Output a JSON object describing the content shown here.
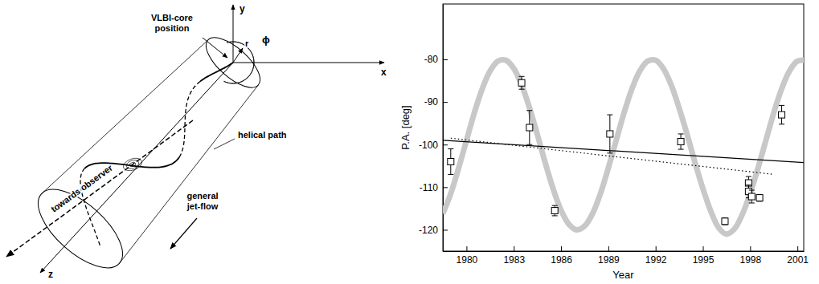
{
  "diagram": {
    "axis_labels": {
      "x": "x",
      "y": "y",
      "z": "z"
    },
    "labels": {
      "core": "VLBI-core position",
      "r": "r",
      "phi": "ϕ",
      "helix": "helical path",
      "observer": "towards observer",
      "flow": "general jet-flow"
    }
  },
  "chart_data": {
    "type": "scatter",
    "x_label": "Year",
    "y_label": "P.A. [deg]",
    "xlim": [
      1978.5,
      2001.4
    ],
    "ylim": [
      -125,
      -67
    ],
    "xticks": [
      1980,
      1983,
      1986,
      1989,
      1992,
      1995,
      1998,
      2001
    ],
    "yticks": [
      -120,
      -110,
      -100,
      -90,
      -80
    ],
    "grid": false,
    "series": [
      {
        "type": "band",
        "color": "#c8c8c8",
        "line_style": "solid",
        "x": [
          1978.5,
          1979.0,
          1979.5,
          1980.0,
          1980.5,
          1981.0,
          1981.5,
          1982.0,
          1982.5,
          1983.0,
          1983.5,
          1984.0,
          1984.5,
          1985.0,
          1985.5,
          1986.0,
          1986.5,
          1987.0,
          1987.5,
          1988.0,
          1988.5,
          1989.0,
          1989.5,
          1990.0,
          1990.5,
          1991.0,
          1991.5,
          1992.0,
          1992.5,
          1993.0,
          1993.5,
          1994.0,
          1994.5,
          1995.0,
          1995.5,
          1996.0,
          1996.5,
          1997.0,
          1997.5,
          1998.0,
          1998.5,
          1999.0,
          1999.5,
          2000.0,
          2000.5,
          2001.0,
          2001.5
        ],
        "values": [
          -116.2,
          -111.5,
          -105.5,
          -99.0,
          -92.5,
          -86.9,
          -82.7,
          -80.4,
          -80.2,
          -82.1,
          -86.0,
          -91.4,
          -97.7,
          -104.3,
          -110.4,
          -115.4,
          -118.7,
          -120.0,
          -119.1,
          -116.2,
          -111.5,
          -105.5,
          -99.0,
          -92.5,
          -86.9,
          -82.7,
          -80.4,
          -80.2,
          -82.2,
          -86.1,
          -91.5,
          -97.6,
          -104.2,
          -110.3,
          -115.6,
          -119.5,
          -121.0,
          -119.8,
          -116.4,
          -111.5,
          -105.5,
          -99.0,
          -92.5,
          -86.9,
          -82.7,
          -80.4,
          -80.2
        ]
      },
      {
        "type": "line",
        "color": "#000000",
        "line_style": "solid",
        "x": [
          1978.5,
          2001.4
        ],
        "values": [
          -99.0,
          -104.2
        ]
      },
      {
        "type": "line",
        "color": "#000000",
        "line_style": "dotted",
        "x": [
          1979.0,
          1999.5
        ],
        "values": [
          -98.5,
          -107.0
        ]
      },
      {
        "type": "scatter",
        "color": "#000000",
        "marker": "square",
        "x": [
          1979.0,
          1983.5,
          1984.0,
          1985.6,
          1989.1,
          1993.6,
          1996.4,
          1997.9,
          1997.9,
          1998.1,
          1998.6,
          2000.0
        ],
        "values": [
          -104,
          -85.5,
          -96,
          -115.5,
          -97.5,
          -99.3,
          -118,
          -109,
          -111,
          -112.2,
          -112.5,
          -93
        ],
        "errors": [
          3,
          1.5,
          4,
          1.2,
          4.5,
          1.8,
          0.8,
          1.5,
          1.5,
          1.5,
          0.8,
          2.2
        ]
      }
    ]
  }
}
